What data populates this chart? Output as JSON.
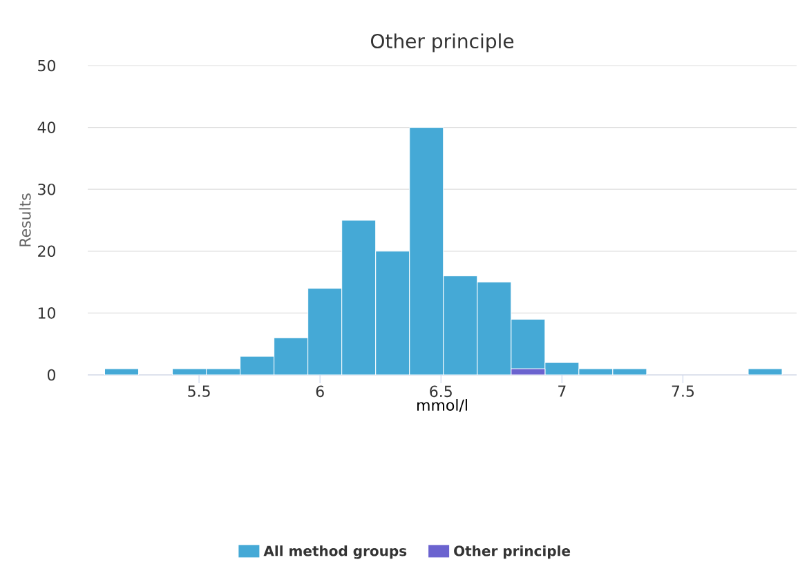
{
  "chart_data": {
    "type": "histogram",
    "title": "Other principle",
    "xlabel": "mmol/l",
    "ylabel": "Results",
    "bins": [
      5.11,
      5.25,
      5.39,
      5.53,
      5.67,
      5.81,
      5.95,
      6.09,
      6.23,
      6.37,
      6.51,
      6.65,
      6.79,
      6.93,
      7.07,
      7.21,
      7.35,
      7.49,
      7.63,
      7.77,
      7.91
    ],
    "series": [
      {
        "name": "All method groups",
        "color": "#45a9d6",
        "values": [
          1,
          0,
          1,
          1,
          3,
          6,
          14,
          25,
          20,
          40,
          16,
          15,
          9,
          2,
          1,
          1,
          0,
          0,
          0,
          1
        ]
      },
      {
        "name": "Other principle",
        "color": "#6b63cf",
        "values": [
          0,
          0,
          0,
          0,
          0,
          0,
          0,
          0,
          0,
          0,
          0,
          0,
          1,
          0,
          0,
          0,
          0,
          0,
          0,
          0
        ]
      }
    ],
    "xlim": [
      5.04,
      7.97
    ],
    "ylim": [
      0,
      50
    ],
    "xticks": [
      5.5,
      6,
      6.5,
      7,
      7.5
    ],
    "yticks": [
      0,
      10,
      20,
      30,
      40,
      50
    ],
    "grid": "y",
    "legend": "bottom"
  }
}
